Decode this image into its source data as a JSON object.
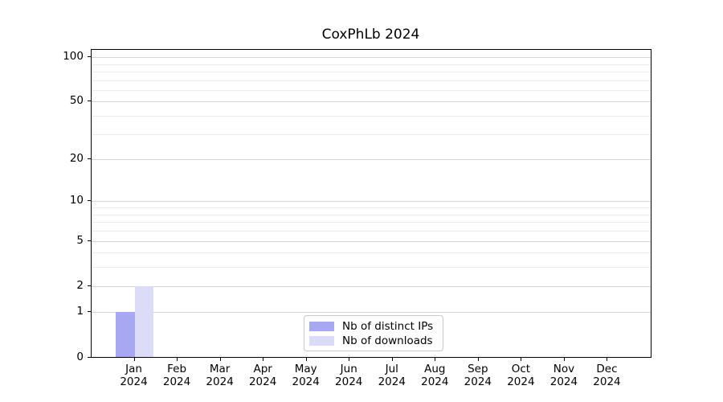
{
  "title": "CoxPhLb 2024",
  "chart_data": {
    "type": "bar",
    "title": "CoxPhLb 2024",
    "categories": [
      "Jan",
      "Feb",
      "Mar",
      "Apr",
      "May",
      "Jun",
      "Jul",
      "Aug",
      "Sep",
      "Oct",
      "Nov",
      "Dec"
    ],
    "x_sublabel": "2024",
    "series": [
      {
        "name": "Nb of distinct IPs",
        "color": "#a8a8f2",
        "values": [
          1,
          0,
          0,
          0,
          0,
          0,
          0,
          0,
          0,
          0,
          0,
          0
        ]
      },
      {
        "name": "Nb of downloads",
        "color": "#dcdcf8",
        "values": [
          2,
          0,
          0,
          0,
          0,
          0,
          0,
          0,
          0,
          0,
          0,
          0
        ]
      }
    ],
    "y_scale": "log1p",
    "y_ticks": [
      0,
      1,
      2,
      5,
      10,
      20,
      50,
      100
    ],
    "y_minor_ticks": [
      3,
      4,
      6,
      7,
      8,
      9,
      30,
      40,
      60,
      70,
      80,
      90
    ],
    "ylim": [
      0,
      112
    ],
    "grid": true,
    "legend_position": "lower center"
  }
}
